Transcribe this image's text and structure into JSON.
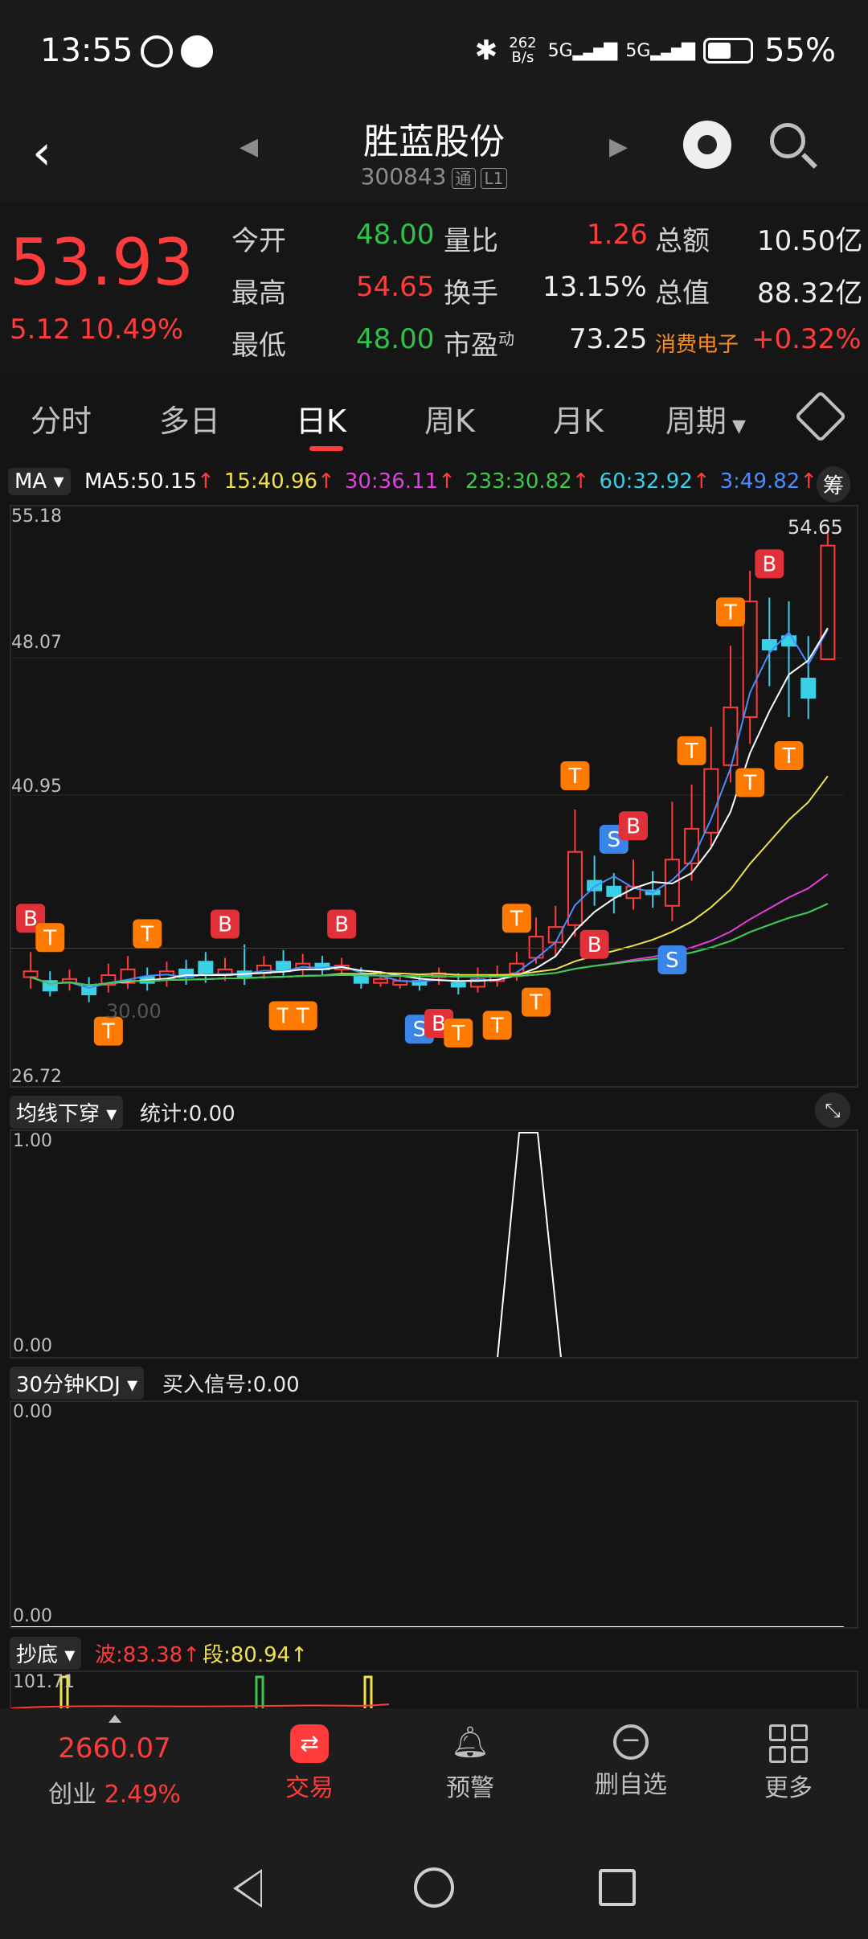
{
  "status": {
    "time": "13:55",
    "net_speed_top": "262",
    "net_speed_bottom": "B/s",
    "net1": "5G",
    "net2": "5G",
    "battery": "55%"
  },
  "header": {
    "title": "胜蓝股份",
    "code": "300843",
    "badge1": "通",
    "badge2": "L1"
  },
  "quote": {
    "price": "53.93",
    "change": "5.12",
    "change_pct": "10.49%",
    "open_label": "今开",
    "open": "48.00",
    "high_label": "最高",
    "high": "54.65",
    "low_label": "最低",
    "low": "48.00",
    "vol_ratio_label": "量比",
    "vol_ratio": "1.26",
    "turnover_label": "换手",
    "turnover": "13.15%",
    "pe_label": "市盈",
    "pe_sup": "动",
    "pe": "73.25",
    "amount_label": "总额",
    "amount": "10.50亿",
    "mcap_label": "总值",
    "mcap": "88.32亿",
    "sector": "消费电子",
    "sector_pct": "+0.32%"
  },
  "tabs": [
    "分时",
    "多日",
    "日K",
    "周K",
    "月K",
    "周期"
  ],
  "ma_bar": {
    "selector": "MA",
    "items": [
      {
        "label": "MA5:50.15",
        "color": "#ffffff"
      },
      {
        "label": "15:40.96",
        "color": "#f0e14a"
      },
      {
        "label": "30:36.11",
        "color": "#e040e0"
      },
      {
        "label": "233:30.82",
        "color": "#3cc84a"
      },
      {
        "label": "60:32.92",
        "color": "#3ad0e8"
      },
      {
        "label": "3:49.82",
        "color": "#4a8cff"
      }
    ],
    "right": "筹"
  },
  "kline": {
    "axis_labels": [
      "55.18",
      "48.07",
      "40.95",
      "26.72"
    ],
    "max_label": "54.65",
    "inner_label": "30.00",
    "last_price_line": "—"
  },
  "chart_data": {
    "type": "candlestick",
    "ylim": [
      26.72,
      55.18
    ],
    "candles": [
      [
        31.8,
        31.5,
        32.8,
        30.9,
        1
      ],
      [
        31.3,
        30.8,
        31.8,
        30.5,
        0
      ],
      [
        31.2,
        31.4,
        31.9,
        30.8,
        1
      ],
      [
        31.0,
        30.6,
        31.5,
        30.2,
        0
      ],
      [
        31.1,
        31.6,
        32.2,
        30.7,
        1
      ],
      [
        31.2,
        31.9,
        32.6,
        30.9,
        1
      ],
      [
        31.5,
        31.2,
        32.0,
        30.8,
        0
      ],
      [
        31.4,
        31.8,
        32.3,
        31.0,
        1
      ],
      [
        31.9,
        31.5,
        32.4,
        31.1,
        0
      ],
      [
        32.3,
        31.6,
        32.8,
        31.2,
        0
      ],
      [
        31.6,
        31.9,
        32.5,
        31.3,
        1
      ],
      [
        31.8,
        31.5,
        33.2,
        31.1,
        0
      ],
      [
        31.7,
        32.1,
        32.6,
        31.4,
        1
      ],
      [
        32.3,
        31.8,
        32.9,
        31.5,
        0
      ],
      [
        31.9,
        32.2,
        32.7,
        31.5,
        1
      ],
      [
        32.2,
        31.9,
        32.6,
        31.6,
        0
      ],
      [
        31.9,
        32.1,
        32.5,
        31.6,
        1
      ],
      [
        31.6,
        31.2,
        32.0,
        30.9,
        0
      ],
      [
        31.2,
        31.4,
        31.8,
        31.0,
        1
      ],
      [
        31.1,
        31.3,
        31.7,
        30.9,
        1
      ],
      [
        31.3,
        31.1,
        31.6,
        30.8,
        0
      ],
      [
        31.5,
        31.7,
        32.0,
        31.1,
        1
      ],
      [
        31.2,
        31.0,
        31.7,
        30.6,
        0
      ],
      [
        31.0,
        31.4,
        32.0,
        30.7,
        1
      ],
      [
        31.3,
        31.6,
        32.1,
        31.0,
        1
      ],
      [
        31.7,
        32.2,
        32.8,
        31.3,
        1
      ],
      [
        32.5,
        33.6,
        34.6,
        32.2,
        1
      ],
      [
        33.3,
        34.1,
        35.2,
        32.6,
        1
      ],
      [
        34.2,
        38.0,
        40.2,
        33.6,
        1
      ],
      [
        36.0,
        36.5,
        37.8,
        35.2,
        0
      ],
      [
        36.2,
        35.7,
        36.9,
        34.8,
        0
      ],
      [
        35.6,
        36.2,
        37.6,
        35.0,
        1
      ],
      [
        36.0,
        35.8,
        37.0,
        35.1,
        0
      ],
      [
        35.2,
        37.6,
        40.6,
        34.4,
        1
      ],
      [
        37.4,
        39.2,
        41.5,
        36.5,
        1
      ],
      [
        39.0,
        42.3,
        44.5,
        38.2,
        1
      ],
      [
        42.5,
        45.5,
        48.7,
        41.6,
        1
      ],
      [
        45.0,
        51.0,
        52.6,
        43.6,
        1
      ],
      [
        49.0,
        48.5,
        51.2,
        46.6,
        0
      ],
      [
        49.2,
        48.7,
        51.0,
        45.0,
        0
      ],
      [
        47.0,
        46.0,
        49.2,
        44.9,
        0
      ],
      [
        48.0,
        53.9,
        54.7,
        48.0,
        1
      ]
    ]
  },
  "ind1": {
    "name": "均线下穿",
    "stat": "统计:0.00",
    "top": "1.00",
    "bottom": "0.00"
  },
  "ind2": {
    "name": "30分钟KDJ",
    "stat": "买入信号:0.00",
    "top": "0.00",
    "bottom": "0.00"
  },
  "ind3": {
    "name": "抄底",
    "wave": "波:83.38↑",
    "seg": "段:80.94↑",
    "top": "101.71"
  },
  "bottom": {
    "index_value": "2660.07",
    "index_name": "创业",
    "index_pct": "2.49%",
    "items": [
      "交易",
      "预警",
      "删自选",
      "更多"
    ]
  }
}
